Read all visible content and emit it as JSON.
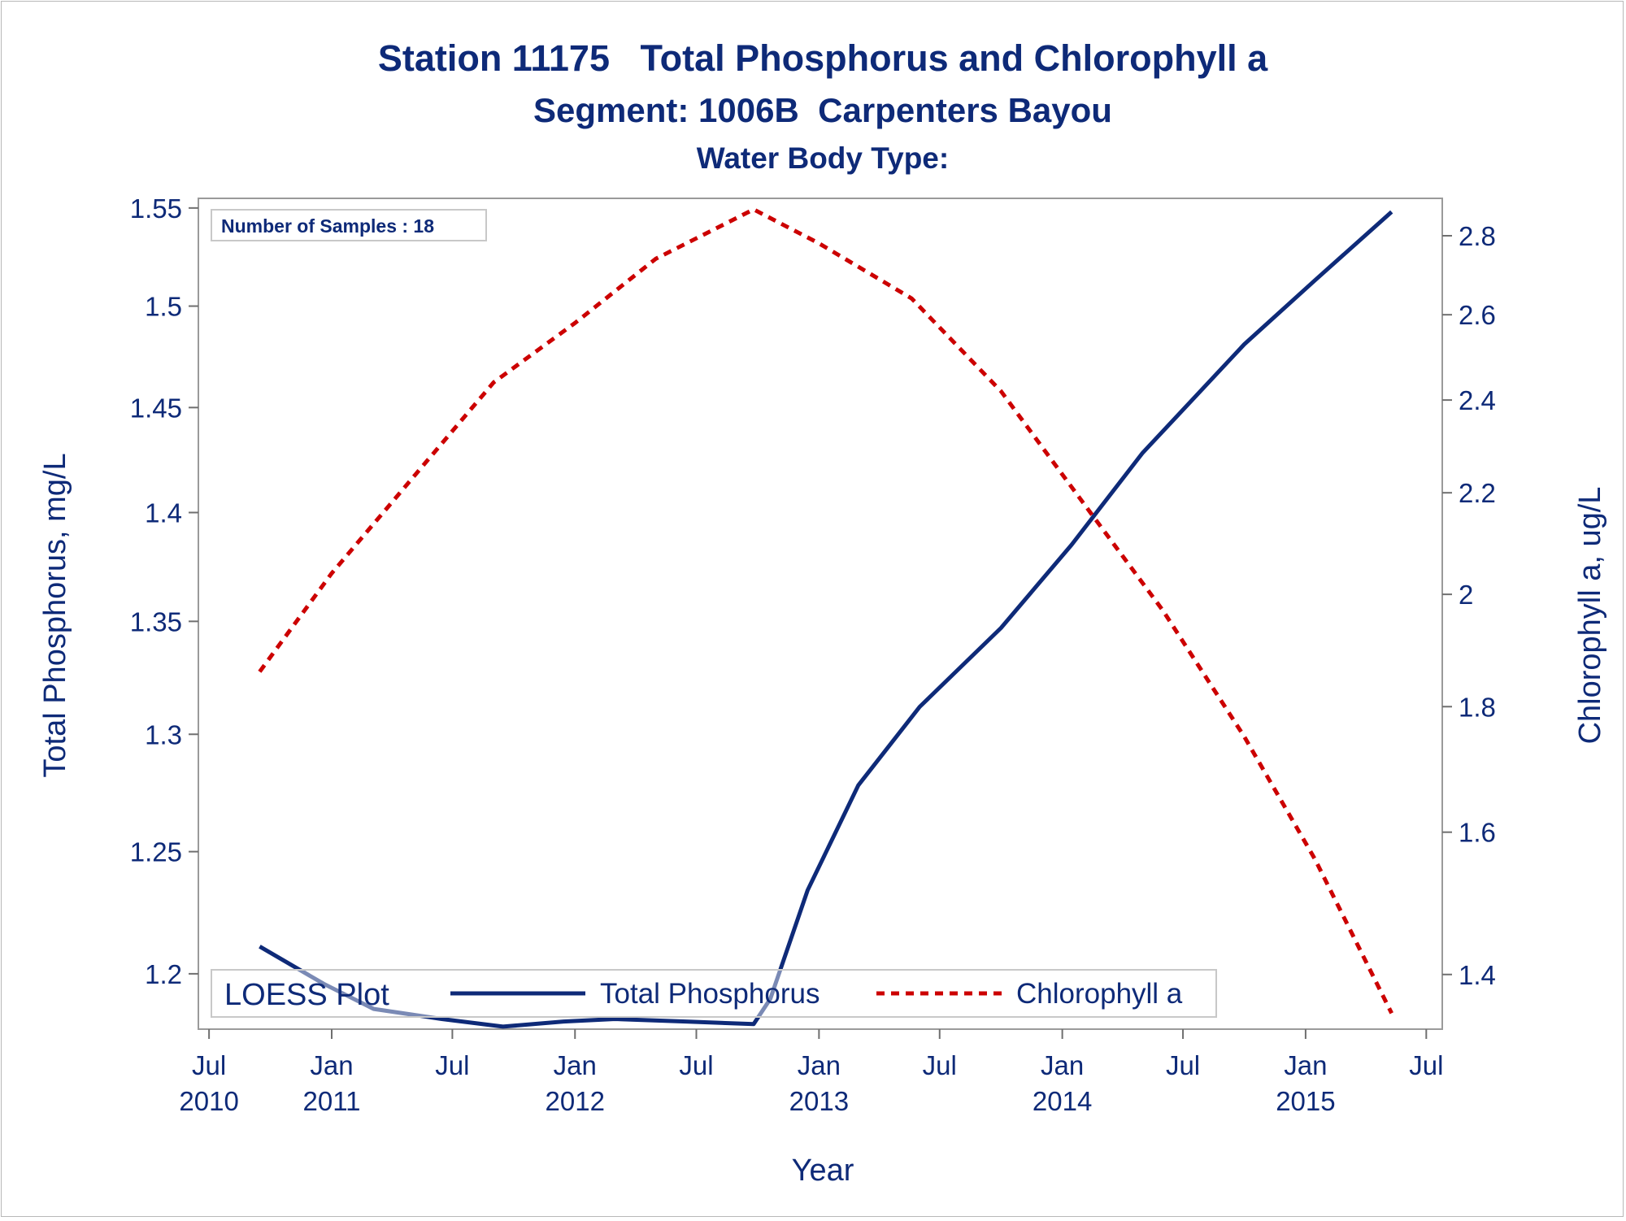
{
  "chart_data": {
    "type": "line",
    "title": "Station 11175   Total Phosphorus and Chlorophyll a",
    "subtitle": "Segment: 1006B  Carpenters Bayou",
    "subtitle2": "Water Body Type:",
    "xlabel": "Year",
    "ylabel": "Total Phosphorus, mg/L",
    "y2label": "Chlorophyll a, ug/L",
    "inset_label": "Number of Samples : 18",
    "legend": {
      "title": "LOESS Plot",
      "placement": "bottom-left",
      "entries": [
        "Total Phosphorus",
        "Chlorophyll a"
      ]
    },
    "x_ticks": [
      {
        "date": "2010-07",
        "month": "Jul",
        "year": "2010"
      },
      {
        "date": "2011-01",
        "month": "Jan",
        "year": "2011"
      },
      {
        "date": "2011-07",
        "month": "Jul",
        "year": ""
      },
      {
        "date": "2012-01",
        "month": "Jan",
        "year": "2012"
      },
      {
        "date": "2012-07",
        "month": "Jul",
        "year": ""
      },
      {
        "date": "2013-01",
        "month": "Jan",
        "year": "2013"
      },
      {
        "date": "2013-07",
        "month": "Jul",
        "year": ""
      },
      {
        "date": "2014-01",
        "month": "Jan",
        "year": "2014"
      },
      {
        "date": "2014-07",
        "month": "Jul",
        "year": ""
      },
      {
        "date": "2015-01",
        "month": "Jan",
        "year": "2015"
      },
      {
        "date": "2015-07",
        "month": "Jul",
        "year": ""
      }
    ],
    "xlim": [
      "2010-06-15",
      "2015-07-25"
    ],
    "y_ticks": [
      "1.2",
      "1.25",
      "1.3",
      "1.35",
      "1.4",
      "1.45",
      "1.5",
      "1.55"
    ],
    "y2_ticks": [
      "1.4",
      "1.6",
      "1.8",
      "2",
      "2.2",
      "2.4",
      "2.6",
      "2.8"
    ],
    "ylim": [
      1.178,
      1.555
    ],
    "y2lim": [
      1.33,
      2.9
    ],
    "y_scale": "log",
    "y2_scale": "log",
    "series": [
      {
        "name": "Total Phosphorus",
        "axis": "left",
        "color": "#0e2a78",
        "style": "solid",
        "x": [
          "2010-09-15",
          "2010-12-20",
          "2011-03-05",
          "2011-06-15",
          "2011-09-15",
          "2011-12-15",
          "2012-03-01",
          "2012-06-15",
          "2012-09-25",
          "2012-10-20",
          "2012-12-15",
          "2013-03-01",
          "2013-06-01",
          "2013-10-01",
          "2014-01-15",
          "2014-05-01",
          "2014-10-01",
          "2015-01-15",
          "2015-05-10"
        ],
        "values": [
          1.211,
          1.196,
          1.186,
          1.182,
          1.179,
          1.181,
          1.182,
          1.181,
          1.18,
          1.19,
          1.234,
          1.278,
          1.312,
          1.347,
          1.385,
          1.428,
          1.481,
          1.513,
          1.548
        ]
      },
      {
        "name": "Chlorophyll a",
        "axis": "right",
        "color": "#cc0000",
        "style": "dashed",
        "x": [
          "2010-09-15",
          "2011-01-01",
          "2011-04-01",
          "2011-09-01",
          "2012-01-01",
          "2012-05-01",
          "2012-09-25",
          "2013-01-01",
          "2013-05-20",
          "2013-10-01",
          "2014-02-01",
          "2014-06-01",
          "2014-10-01",
          "2015-01-15",
          "2015-05-10"
        ],
        "values": [
          1.86,
          2.04,
          2.18,
          2.44,
          2.58,
          2.74,
          2.87,
          2.78,
          2.64,
          2.42,
          2.18,
          1.97,
          1.75,
          1.56,
          1.35
        ]
      }
    ]
  }
}
